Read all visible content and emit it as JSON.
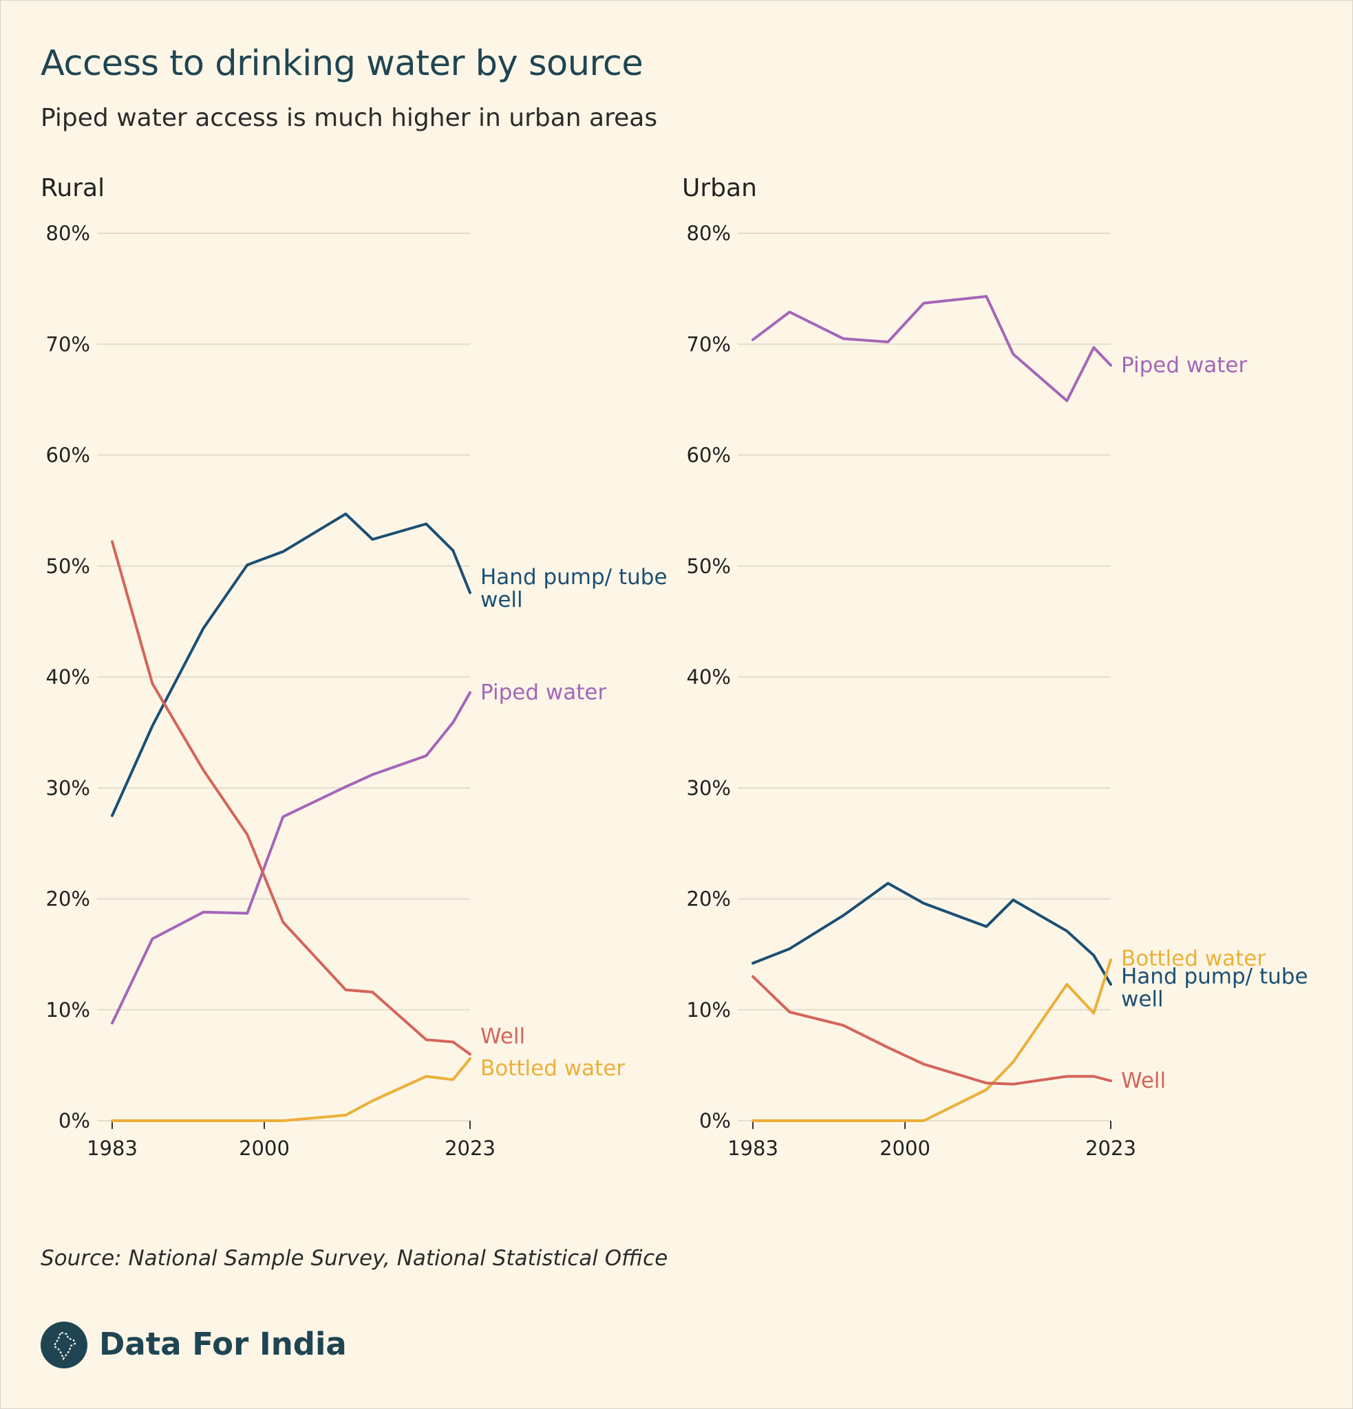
{
  "title": "Access to drinking water by source",
  "subtitle": "Piped water access is much higher in urban areas",
  "source": "Source: National Sample Survey, National Statistical Office",
  "brand": "Data For India",
  "colors": {
    "Hand pump/ tube well": "#1c4f73",
    "Piped water": "#a466b9",
    "Well": "#d4655a",
    "Bottled water": "#ebb038",
    "grid": "#e3dccc",
    "background": "#fdf6e7"
  },
  "chart_data": [
    {
      "type": "line",
      "title": "Rural",
      "xlabel": "",
      "ylabel": "",
      "xlim": [
        1983,
        2023
      ],
      "ylim": [
        0,
        80
      ],
      "x_ticks": [
        "1983",
        "2000",
        "2023"
      ],
      "y_ticks": [
        "0%",
        "10%",
        "20%",
        "30%",
        "40%",
        "50%",
        "60%",
        "70%",
        "80%"
      ],
      "series": [
        {
          "name": "Hand pump/ tube well",
          "label_lines": [
            "Hand pump/ tube",
            "well"
          ],
          "label_y": 48,
          "x": [
            1983,
            1987.5,
            1993.2,
            1998.1,
            2002.1,
            2009.1,
            2012.1,
            2018.1,
            2021.1,
            2023
          ],
          "y": [
            27.5,
            35.6,
            44.4,
            50.1,
            51.3,
            54.7,
            52.4,
            53.8,
            51.4,
            47.6
          ]
        },
        {
          "name": "Piped water",
          "label_lines": [
            "Piped water"
          ],
          "label_y": 38.6,
          "x": [
            1983,
            1987.5,
            1993.2,
            1998.1,
            2002.1,
            2009.1,
            2012.1,
            2018.1,
            2021.1,
            2023
          ],
          "y": [
            8.8,
            16.4,
            18.8,
            18.7,
            27.4,
            30.1,
            31.2,
            32.9,
            35.9,
            38.6
          ]
        },
        {
          "name": "Well",
          "label_lines": [
            "Well"
          ],
          "label_y": 7.6,
          "x": [
            1983,
            1987.5,
            1993.2,
            1998.1,
            2002.1,
            2009.1,
            2012.1,
            2018.1,
            2021.1,
            2023
          ],
          "y": [
            52.2,
            39.4,
            31.6,
            25.8,
            17.9,
            11.8,
            11.6,
            7.3,
            7.1,
            6.0
          ]
        },
        {
          "name": "Bottled water",
          "label_lines": [
            "Bottled water"
          ],
          "label_y": 4.7,
          "x": [
            1983,
            1987.5,
            1993.2,
            1998.1,
            2002.1,
            2009.1,
            2012.1,
            2018.1,
            2021.1,
            2023
          ],
          "y": [
            0,
            0,
            0,
            0,
            0,
            0.5,
            1.8,
            4.0,
            3.7,
            5.6
          ]
        }
      ]
    },
    {
      "type": "line",
      "title": "Urban",
      "xlabel": "",
      "ylabel": "",
      "xlim": [
        1983,
        2023
      ],
      "ylim": [
        0,
        80
      ],
      "x_ticks": [
        "1983",
        "2000",
        "2023"
      ],
      "y_ticks": [
        "0%",
        "10%",
        "20%",
        "30%",
        "40%",
        "50%",
        "60%",
        "70%",
        "80%"
      ],
      "series": [
        {
          "name": "Piped water",
          "label_lines": [
            "Piped water"
          ],
          "label_y": 68.1,
          "x": [
            1983,
            1987.1,
            1993.1,
            1998.1,
            2002.1,
            2009.1,
            2012.1,
            2018.1,
            2021.1,
            2023
          ],
          "y": [
            70.4,
            72.9,
            70.5,
            70.2,
            73.7,
            74.3,
            69.1,
            64.9,
            69.7,
            68.1
          ]
        },
        {
          "name": "Hand pump/ tube well",
          "label_lines": [
            "Hand pump/ tube",
            "well"
          ],
          "label_y": 12.0,
          "x": [
            1983,
            1987.1,
            1993.1,
            1998.1,
            2002.1,
            2009.1,
            2012.1,
            2018.1,
            2021.1,
            2023
          ],
          "y": [
            14.2,
            15.5,
            18.5,
            21.4,
            19.6,
            17.5,
            19.9,
            17.1,
            14.9,
            12.3
          ]
        },
        {
          "name": "Bottled water",
          "label_lines": [
            "Bottled water"
          ],
          "label_y": 14.6,
          "x": [
            1983,
            1987.1,
            1993.1,
            1998.1,
            2002.1,
            2009.1,
            2012.1,
            2018.1,
            2021.1,
            2023
          ],
          "y": [
            0,
            0,
            0,
            0,
            0,
            2.8,
            5.3,
            12.3,
            9.7,
            14.5
          ]
        },
        {
          "name": "Well",
          "label_lines": [
            "Well"
          ],
          "label_y": 3.6,
          "x": [
            1983,
            1987.1,
            1993.1,
            1998.1,
            2002.1,
            2009.1,
            2012.1,
            2018.1,
            2021.1,
            2023
          ],
          "y": [
            13.0,
            9.8,
            8.6,
            6.6,
            5.1,
            3.4,
            3.3,
            4.0,
            4.0,
            3.6
          ]
        }
      ]
    }
  ]
}
